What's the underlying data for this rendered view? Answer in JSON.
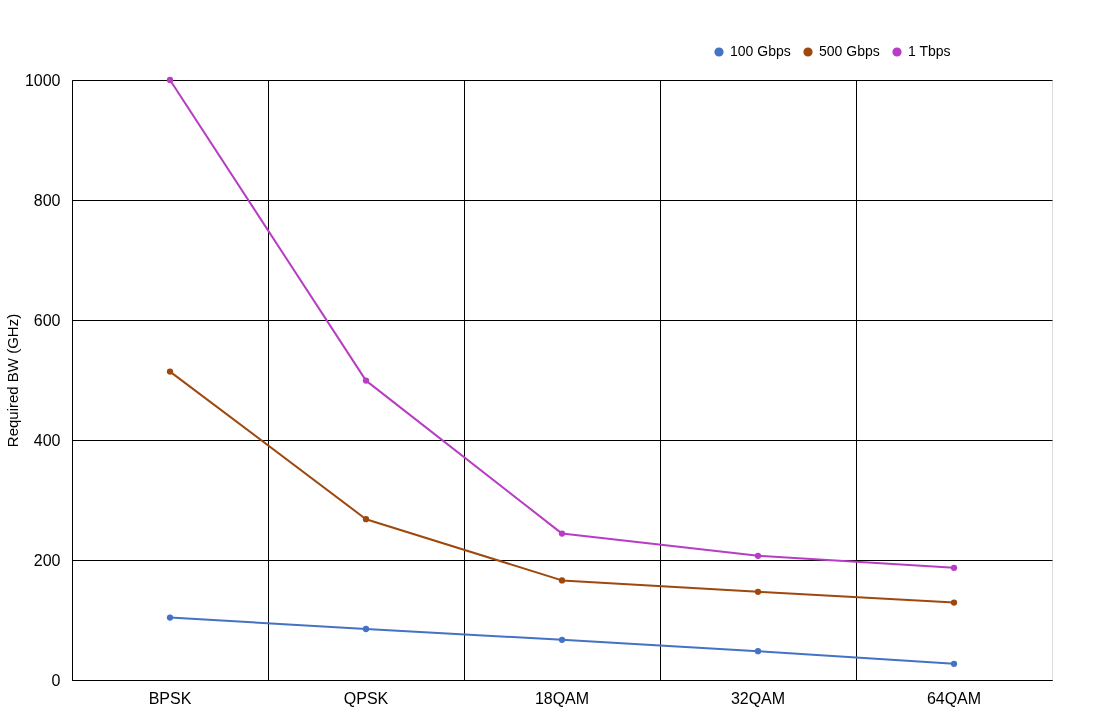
{
  "chart_data": {
    "type": "line",
    "categories": [
      "BPSK",
      "QPSK",
      "18QAM",
      "32QAM",
      "64QAM"
    ],
    "series": [
      {
        "name": "100 Gbps",
        "color": "#4472c4",
        "values": [
          104,
          85,
          67,
          48,
          27
        ]
      },
      {
        "name": "500 Gbps",
        "color": "#9e480e",
        "values": [
          514,
          268,
          166,
          147,
          129
        ]
      },
      {
        "name": "1 Tbps",
        "color": "#b83cc4",
        "values": [
          1000,
          499,
          244,
          207,
          187
        ]
      }
    ],
    "ylabel": "Required BW (GHz)",
    "ylim": [
      0,
      1000
    ],
    "yticks": [
      0,
      200,
      400,
      600,
      800,
      1000
    ],
    "grid": true,
    "legend": "top right",
    "marker": "circle",
    "line_style": "solid"
  }
}
